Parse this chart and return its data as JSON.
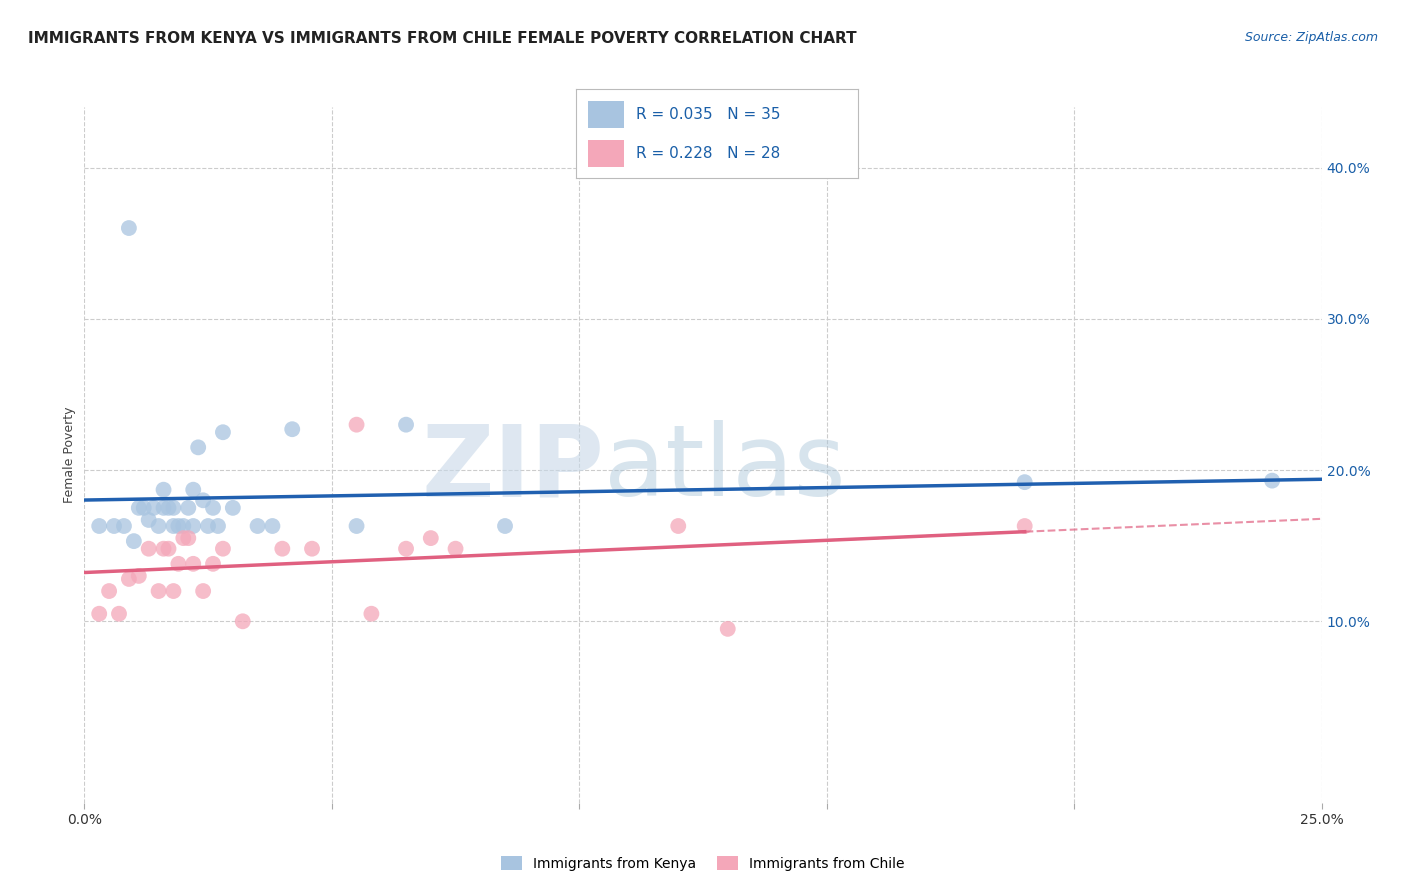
{
  "title": "IMMIGRANTS FROM KENYA VS IMMIGRANTS FROM CHILE FEMALE POVERTY CORRELATION CHART",
  "source": "Source: ZipAtlas.com",
  "ylabel": "Female Poverty",
  "xlim": [
    0.0,
    0.25
  ],
  "ylim": [
    -0.02,
    0.44
  ],
  "yticks_right": [
    0.1,
    0.2,
    0.3,
    0.4
  ],
  "ytick_right_labels": [
    "10.0%",
    "20.0%",
    "30.0%",
    "40.0%"
  ],
  "kenya_color": "#a8c4e0",
  "chile_color": "#f4a7b9",
  "kenya_line_color": "#2060b0",
  "chile_line_color": "#e06080",
  "kenya_R": 0.035,
  "kenya_N": 35,
  "chile_R": 0.228,
  "chile_N": 28,
  "legend_text_color": "#1a5fa8",
  "background_color": "#ffffff",
  "grid_color": "#cccccc",
  "kenya_scatter_x": [
    0.003,
    0.006,
    0.008,
    0.009,
    0.01,
    0.011,
    0.012,
    0.013,
    0.014,
    0.015,
    0.016,
    0.016,
    0.017,
    0.018,
    0.018,
    0.019,
    0.02,
    0.021,
    0.022,
    0.022,
    0.023,
    0.024,
    0.025,
    0.026,
    0.027,
    0.028,
    0.03,
    0.035,
    0.038,
    0.042,
    0.055,
    0.065,
    0.085,
    0.19,
    0.24
  ],
  "kenya_scatter_y": [
    0.163,
    0.163,
    0.163,
    0.36,
    0.153,
    0.175,
    0.175,
    0.167,
    0.175,
    0.163,
    0.175,
    0.187,
    0.175,
    0.163,
    0.175,
    0.163,
    0.163,
    0.175,
    0.163,
    0.187,
    0.215,
    0.18,
    0.163,
    0.175,
    0.163,
    0.225,
    0.175,
    0.163,
    0.163,
    0.227,
    0.163,
    0.23,
    0.163,
    0.192,
    0.193
  ],
  "chile_scatter_x": [
    0.003,
    0.005,
    0.007,
    0.009,
    0.011,
    0.013,
    0.015,
    0.016,
    0.017,
    0.018,
    0.019,
    0.02,
    0.021,
    0.022,
    0.024,
    0.026,
    0.028,
    0.032,
    0.04,
    0.046,
    0.055,
    0.058,
    0.065,
    0.07,
    0.075,
    0.12,
    0.13,
    0.19
  ],
  "chile_scatter_y": [
    0.105,
    0.12,
    0.105,
    0.128,
    0.13,
    0.148,
    0.12,
    0.148,
    0.148,
    0.12,
    0.138,
    0.155,
    0.155,
    0.138,
    0.12,
    0.138,
    0.148,
    0.1,
    0.148,
    0.148,
    0.23,
    0.105,
    0.148,
    0.155,
    0.148,
    0.163,
    0.095,
    0.163
  ],
  "title_fontsize": 11,
  "source_fontsize": 9,
  "axis_label_fontsize": 9,
  "tick_fontsize": 10,
  "legend_fontsize": 11,
  "marker_size": 130
}
